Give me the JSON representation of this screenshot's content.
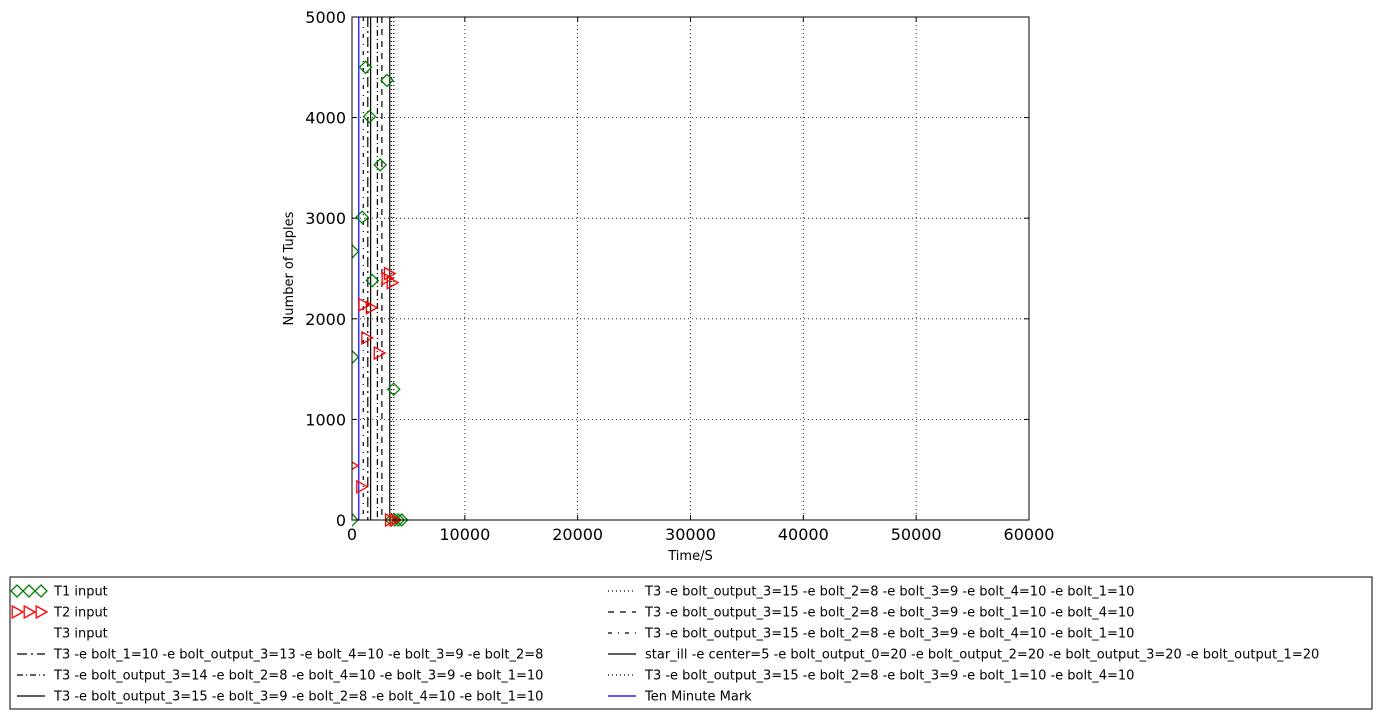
{
  "chart_data": {
    "type": "scatter",
    "title": "",
    "xlabel": "Time/S",
    "ylabel": "Number of Tuples",
    "xlim": [
      0,
      60000
    ],
    "ylim": [
      0,
      5000
    ],
    "x_ticks": [
      0,
      10000,
      20000,
      30000,
      40000,
      50000,
      60000
    ],
    "y_ticks": [
      0,
      1000,
      2000,
      3000,
      4000,
      5000
    ],
    "x_tick_labels": [
      "0",
      "10000",
      "20000",
      "30000",
      "40000",
      "50000",
      "60000"
    ],
    "y_tick_labels": [
      "0",
      "1000",
      "2000",
      "3000",
      "4000",
      "5000"
    ],
    "grid": true,
    "legend_position": "below",
    "series": [
      {
        "name": "T1 input",
        "marker": "diamond",
        "color": "#008000",
        "points": [
          [
            0,
            0
          ],
          [
            30,
            1620
          ],
          [
            50,
            2670
          ],
          [
            900,
            3010
          ],
          [
            1200,
            4500
          ],
          [
            1550,
            4010
          ],
          [
            1800,
            2380
          ],
          [
            2500,
            3530
          ],
          [
            3100,
            4370
          ],
          [
            3700,
            1300
          ],
          [
            3500,
            0
          ],
          [
            3800,
            0
          ],
          [
            4100,
            0
          ],
          [
            4400,
            0
          ]
        ]
      },
      {
        "name": "T2 input",
        "marker": "triangle-right",
        "color": "#ff0000",
        "points": [
          [
            30,
            540
          ],
          [
            850,
            330
          ],
          [
            1050,
            2140
          ],
          [
            1300,
            1810
          ],
          [
            1700,
            2110
          ],
          [
            2400,
            1660
          ],
          [
            3100,
            2400
          ],
          [
            3300,
            2450
          ],
          [
            3550,
            2360
          ],
          [
            3400,
            0
          ],
          [
            3800,
            0
          ]
        ]
      },
      {
        "name": "T3 input",
        "marker": "none",
        "color": "#ffffff",
        "points": []
      },
      {
        "name": "T3 -e bolt_1=10 -e bolt_output_3=13 -e bolt_4=10 -e bolt_3=9 -e bolt_2=8",
        "type": "vline",
        "line_style": "dashdot-long",
        "color": "#000000",
        "x": 1400
      },
      {
        "name": "T3 -e bolt_output_3=14 -e bolt_2=8 -e bolt_4=10 -e bolt_3=9 -e bolt_1=10",
        "type": "vline",
        "line_style": "dashdot",
        "color": "#000000",
        "x": 2250
      },
      {
        "name": "T3 -e bolt_output_3=15 -e bolt_3=9 -e bolt_2=8 -e bolt_4=10 -e bolt_1=10",
        "type": "vline",
        "line_style": "solid",
        "color": "#000000",
        "x": 1650
      },
      {
        "name": "T3 -e bolt_output_3=15 -e bolt_2=8 -e bolt_3=9 -e bolt_4=10 -e bolt_1=10",
        "type": "vline",
        "line_style": "dotted",
        "color": "#000000",
        "x": 3500
      },
      {
        "name": "T3 -e bolt_output_3=15 -e bolt_2=8 -e bolt_3=9 -e bolt_1=10 -e bolt_4=10",
        "type": "vline",
        "line_style": "dashed",
        "color": "#000000",
        "x": 2650
      },
      {
        "name": "T3 -e bolt_output_3=15 -e bolt_2=8 -e bolt_3=9 -e bolt_4=10 -e bolt_1=10",
        "type": "vline",
        "line_style": "dashdot-loose",
        "color": "#000000",
        "x": 1000
      },
      {
        "name": "star_ill -e center=5 -e bolt_output_0=20 -e bolt_output_2=20 -e bolt_output_3=20 -e bolt_output_1=20",
        "type": "vline",
        "line_style": "solid",
        "color": "#000000",
        "x": 3350
      },
      {
        "name": "T3 -e bolt_output_3=15 -e bolt_2=8 -e bolt_3=9 -e bolt_1=10 -e bolt_4=10",
        "type": "vline",
        "line_style": "dotted",
        "color": "#000000",
        "x": 3700
      },
      {
        "name": "Ten Minute Mark",
        "type": "vline",
        "line_style": "solid",
        "color": "#0000ff",
        "x": 600
      }
    ]
  }
}
